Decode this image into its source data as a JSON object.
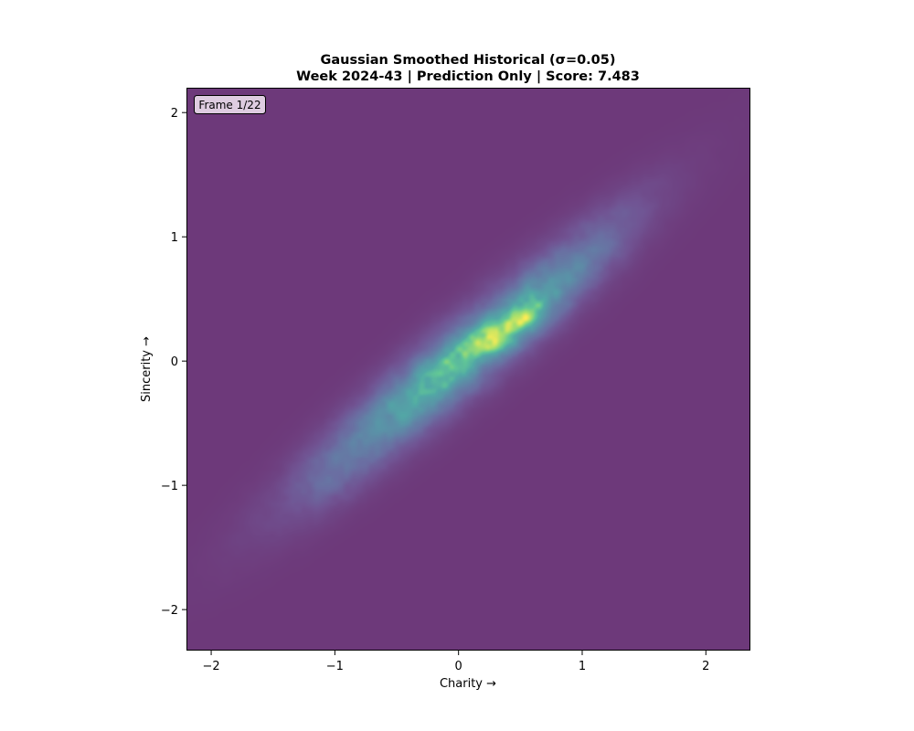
{
  "chart_data": {
    "type": "heatmap",
    "title_line1": "Gaussian Smoothed Historical (σ=0.05)",
    "title_line2": "Week 2024-43 | Prediction Only | Score: 7.483",
    "xlabel": "Charity →",
    "ylabel": "Sincerity →",
    "xlim": [
      -2.2,
      2.36
    ],
    "ylim": [
      -2.33,
      2.2
    ],
    "xticks": [
      -2,
      -1,
      0,
      1,
      2
    ],
    "yticks": [
      -2,
      -1,
      0,
      1,
      2
    ],
    "xtick_labels": [
      "−2",
      "−1",
      "0",
      "1",
      "2"
    ],
    "ytick_labels": [
      "−2",
      "−1",
      "0",
      "1",
      "2"
    ],
    "frame_label": "Frame 1/22",
    "colormap": "viridis",
    "background_color": "#6a3476",
    "grid": false,
    "density_components": [
      {
        "x": 0.0,
        "y": 0.0,
        "sx": 0.95,
        "sy": 0.17,
        "angle_deg": 40,
        "w": 0.55
      },
      {
        "x": 0.45,
        "y": 0.3,
        "sx": 0.2,
        "sy": 0.1,
        "angle_deg": 35,
        "w": 0.5
      },
      {
        "x": 0.15,
        "y": 0.1,
        "sx": 0.25,
        "sy": 0.1,
        "angle_deg": 35,
        "w": 0.25
      },
      {
        "x": -0.15,
        "y": -0.08,
        "sx": 0.22,
        "sy": 0.1,
        "angle_deg": 40,
        "w": 0.2
      },
      {
        "x": 0.75,
        "y": 0.55,
        "sx": 0.35,
        "sy": 0.12,
        "angle_deg": 38,
        "w": 0.2
      },
      {
        "x": -0.4,
        "y": -0.35,
        "sx": 0.35,
        "sy": 0.12,
        "angle_deg": 40,
        "w": 0.15
      },
      {
        "x": -0.95,
        "y": -0.85,
        "sx": 0.3,
        "sy": 0.14,
        "angle_deg": 45,
        "w": 0.1
      },
      {
        "x": 1.2,
        "y": 1.05,
        "sx": 0.3,
        "sy": 0.12,
        "angle_deg": 40,
        "w": 0.08
      }
    ]
  }
}
